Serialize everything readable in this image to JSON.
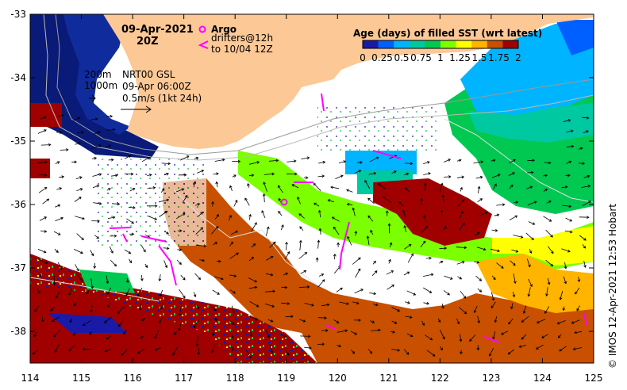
{
  "title": {
    "date": "09-Apr-2021",
    "time": "20Z"
  },
  "legend_argo": {
    "label": "Argo",
    "drifters_line1": "drifters@12h",
    "drifters_line2": "to 10/04 12Z",
    "argo_color": "#ff00ff",
    "drifter_color": "#ff00ff"
  },
  "depth_labels": {
    "d200": "200m",
    "d1000": "1000m"
  },
  "product_info": {
    "line1": "NRT00 GSL",
    "line2": "09-Apr 06:00Z",
    "line3": "0.5m/s (1kt 24h)"
  },
  "colorbar": {
    "title": "Age (days) of filled SST (wrt latest)",
    "ticks": [
      "0",
      "0.25",
      "0.5",
      "0.75",
      "1",
      "1.25",
      "1.5",
      "1.75",
      "2"
    ],
    "colors": [
      "#1a1aa8",
      "#0060ff",
      "#00b4ff",
      "#00c8a0",
      "#00c850",
      "#7cff00",
      "#ffff00",
      "#ffb400",
      "#c85000",
      "#a00000"
    ]
  },
  "axes": {
    "lon_ticks": [
      "114",
      "115",
      "116",
      "117",
      "118",
      "119",
      "120",
      "121",
      "122",
      "123",
      "124",
      "125"
    ],
    "lat_ticks": [
      "-33",
      "-34",
      "-35",
      "-36",
      "-37",
      "-38"
    ],
    "lon_range": [
      114,
      125
    ],
    "lat_range": [
      -38.5,
      -33
    ]
  },
  "credit": "© IMOS 12-Apr-2021 12:53 Hobart",
  "colors": {
    "land": "#fcc896",
    "deep_navy": "#0a1a78",
    "shelf_navy": "#102c9c",
    "white_gap": "#ffffff"
  }
}
